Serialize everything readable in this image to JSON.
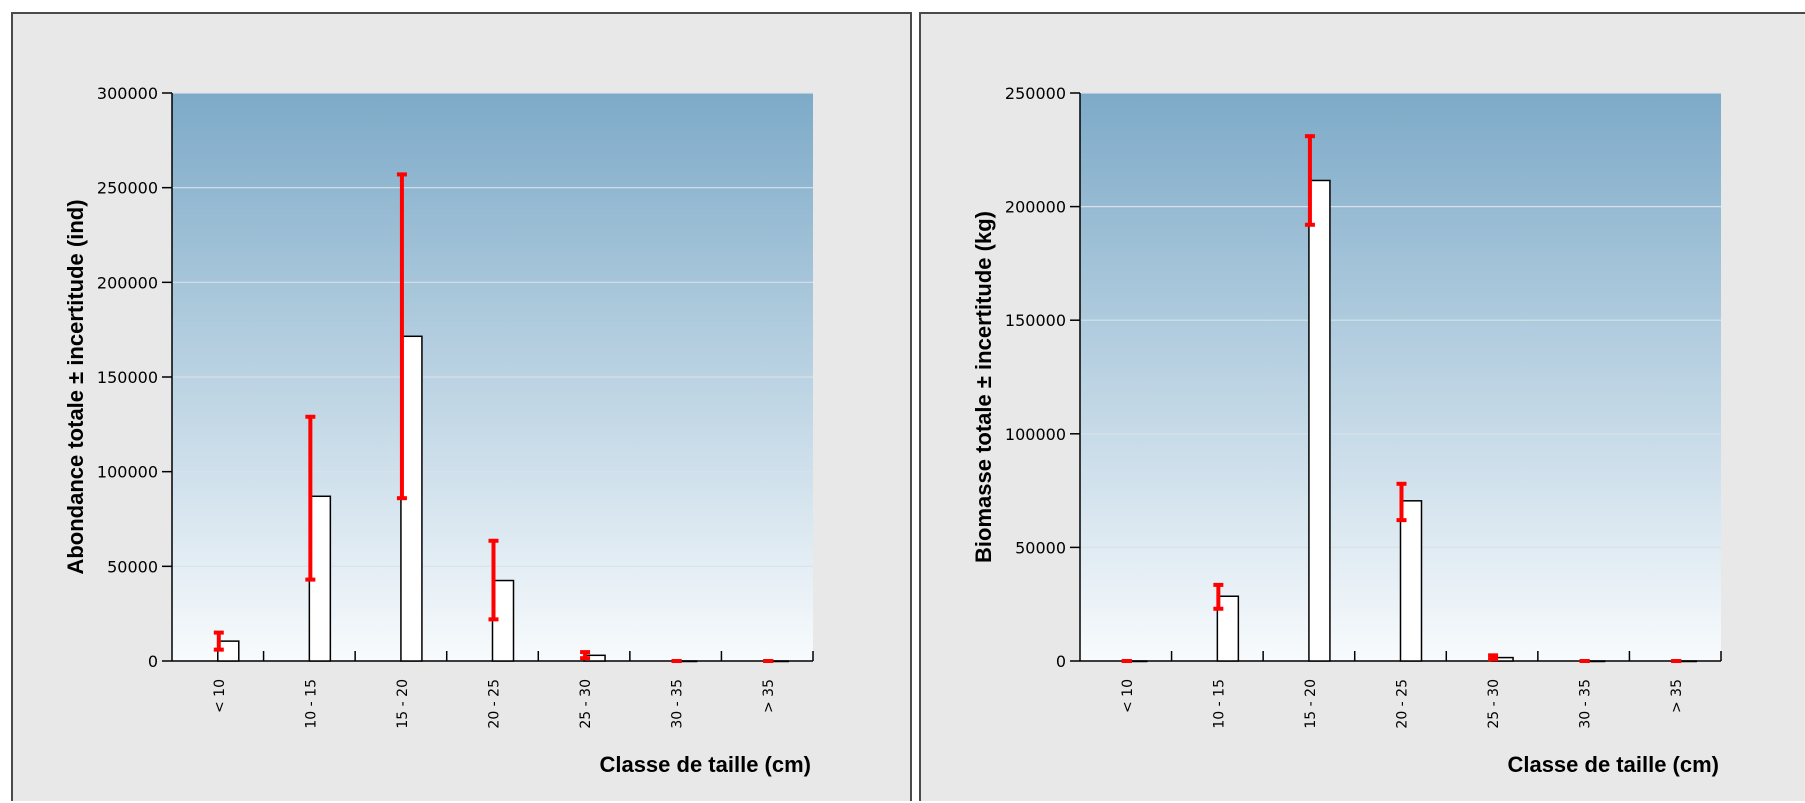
{
  "colors": {
    "plot_top": "#7daac8",
    "plot_bottom": "#f8fbfd",
    "panel_bg": "#e8e8e8",
    "error_bar": "#ff0000",
    "bar_outline": "#000000",
    "bar_fill": "#ffffff",
    "gridline": "#d7e2ea"
  },
  "chart_data": [
    {
      "type": "bar",
      "categories": [
        "< 10",
        "10 - 15",
        "15 - 20",
        "20 - 25",
        "25 - 30",
        "30 - 35",
        "> 35"
      ],
      "values": [
        10500,
        87000,
        171500,
        42500,
        3000,
        0,
        0
      ],
      "error_low": [
        6000,
        43000,
        86000,
        22000,
        1500,
        0,
        0
      ],
      "error_high": [
        15000,
        129000,
        257000,
        63500,
        4700,
        0,
        0
      ],
      "ylabel": "Abondance totale ± incertitude (ind)",
      "xlabel": "Classe de taille (cm)",
      "ylim": [
        0,
        300000
      ],
      "yticks": [
        "0",
        "50000",
        "100000",
        "150000",
        "200000",
        "250000",
        "300000"
      ],
      "grid": true
    },
    {
      "type": "bar",
      "categories": [
        "< 10",
        "10 - 15",
        "15 - 20",
        "20 - 25",
        "25 - 30",
        "30 - 35",
        "> 35"
      ],
      "values": [
        0,
        28500,
        211500,
        70500,
        1500,
        0,
        0
      ],
      "error_low": [
        0,
        23000,
        192000,
        62000,
        800,
        0,
        0
      ],
      "error_high": [
        0,
        33500,
        231000,
        78000,
        2500,
        0,
        0
      ],
      "ylabel": "Biomasse totale ± incertitude (kg)",
      "xlabel": "Classe de taille (cm)",
      "ylim": [
        0,
        250000
      ],
      "yticks": [
        "0",
        "50000",
        "100000",
        "150000",
        "200000",
        "250000"
      ],
      "grid": true
    }
  ]
}
